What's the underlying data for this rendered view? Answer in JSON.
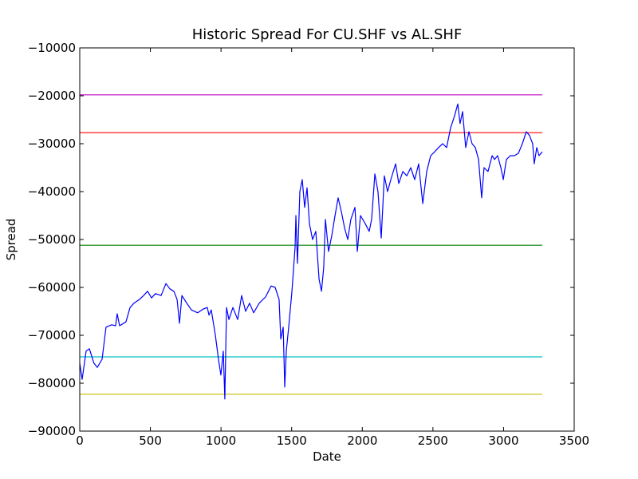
{
  "chart_data": {
    "type": "line",
    "title": "Historic Spread For CU.SHF vs AL.SHF",
    "x_label": "Date",
    "y_label": "Spread",
    "xlim": [
      0,
      3500
    ],
    "xticks": [
      0,
      500,
      1000,
      1500,
      2000,
      2500,
      3000,
      3500
    ],
    "ylim": [
      -90000,
      -10000
    ],
    "yticks": [
      {
        "value": -90000,
        "label": "−90000"
      },
      {
        "value": -80000,
        "label": "−80000"
      },
      {
        "value": -70000,
        "label": "−70000"
      },
      {
        "value": -60000,
        "label": "−60000"
      },
      {
        "value": -50000,
        "label": "−50000"
      },
      {
        "value": -40000,
        "label": "−40000"
      },
      {
        "value": -30000,
        "label": "−30000"
      },
      {
        "value": -20000,
        "label": "−20000"
      },
      {
        "value": -10000,
        "label": "−10000"
      }
    ],
    "color": "#0000ff",
    "x": [
      0,
      17,
      45,
      68,
      100,
      124,
      158,
      186,
      226,
      254,
      265,
      282,
      327,
      356,
      384,
      423,
      452,
      480,
      508,
      536,
      576,
      610,
      638,
      666,
      689,
      706,
      723,
      751,
      790,
      835,
      875,
      903,
      915,
      931,
      960,
      982,
      999,
      1016,
      1027,
      1039,
      1056,
      1084,
      1118,
      1146,
      1174,
      1202,
      1231,
      1270,
      1315,
      1355,
      1383,
      1411,
      1423,
      1440,
      1451,
      1462,
      1479,
      1502,
      1524,
      1530,
      1541,
      1558,
      1575,
      1592,
      1609,
      1626,
      1648,
      1671,
      1694,
      1711,
      1727,
      1739,
      1761,
      1784,
      1807,
      1829,
      1852,
      1874,
      1897,
      1919,
      1948,
      1965,
      1987,
      2021,
      2049,
      2066,
      2089,
      2111,
      2134,
      2156,
      2179,
      2202,
      2236,
      2258,
      2287,
      2315,
      2343,
      2371,
      2399,
      2428,
      2456,
      2484,
      2512,
      2540,
      2569,
      2597,
      2625,
      2653,
      2676,
      2692,
      2710,
      2732,
      2755,
      2777,
      2800,
      2823,
      2845,
      2862,
      2890,
      2919,
      2936,
      2958,
      2981,
      2998,
      3020,
      3048,
      3077,
      3105,
      3133,
      3161,
      3184,
      3206,
      3217,
      3235,
      3251,
      3274
    ],
    "values": [
      -75800,
      -79200,
      -73300,
      -72800,
      -75800,
      -76700,
      -75000,
      -68300,
      -67800,
      -68000,
      -65500,
      -68000,
      -67200,
      -64200,
      -63300,
      -62500,
      -61700,
      -60800,
      -62200,
      -61300,
      -61700,
      -59200,
      -60300,
      -60800,
      -62500,
      -67500,
      -61700,
      -63000,
      -64700,
      -65300,
      -64500,
      -64200,
      -65800,
      -64700,
      -70000,
      -75000,
      -78300,
      -73300,
      -83300,
      -64200,
      -66700,
      -64200,
      -66700,
      -61700,
      -65000,
      -63300,
      -65300,
      -63300,
      -62000,
      -59700,
      -60000,
      -62500,
      -70800,
      -68300,
      -80800,
      -73300,
      -68300,
      -60800,
      -51700,
      -45000,
      -55000,
      -40000,
      -37500,
      -43300,
      -39200,
      -46700,
      -50000,
      -48300,
      -58300,
      -60800,
      -55800,
      -45800,
      -52500,
      -49200,
      -45000,
      -41300,
      -44200,
      -47500,
      -50000,
      -45800,
      -43300,
      -52500,
      -45000,
      -46700,
      -48300,
      -45800,
      -36300,
      -40000,
      -49700,
      -36700,
      -40000,
      -37500,
      -34200,
      -38300,
      -35800,
      -36700,
      -35000,
      -37500,
      -34200,
      -42500,
      -35800,
      -32500,
      -31700,
      -30800,
      -30000,
      -30800,
      -26700,
      -24200,
      -21700,
      -25800,
      -23300,
      -30800,
      -27500,
      -30000,
      -30800,
      -33300,
      -41300,
      -35000,
      -35800,
      -32500,
      -33300,
      -32500,
      -35000,
      -37500,
      -33300,
      -32500,
      -32500,
      -32000,
      -30000,
      -27500,
      -28300,
      -30000,
      -34200,
      -30800,
      -32500,
      -31700
    ],
    "hlines": [
      {
        "value": -19800,
        "color": "#bf00bf"
      },
      {
        "value": -27700,
        "color": "#ff0000"
      },
      {
        "value": -51200,
        "color": "#008000"
      },
      {
        "value": -74500,
        "color": "#00bfbf"
      },
      {
        "value": -82300,
        "color": "#bfbf00"
      }
    ]
  }
}
